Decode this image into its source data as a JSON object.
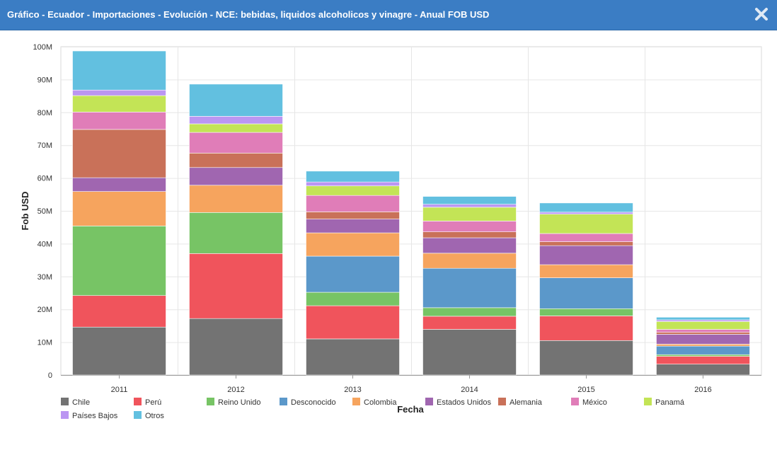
{
  "window": {
    "title": "Gráfico - Ecuador - Importaciones - Evolución - NCE: bebidas, liquidos alcoholicos y vinagre - Anual FOB USD",
    "close_icon": "close-x-icon"
  },
  "chart_data": {
    "type": "bar",
    "stacked": true,
    "xlabel": "Fecha",
    "ylabel": "Fob USD",
    "ylim": [
      0,
      100000000
    ],
    "yticks": [
      {
        "value": 0,
        "label": "0"
      },
      {
        "value": 10000000,
        "label": "10M"
      },
      {
        "value": 20000000,
        "label": "20M"
      },
      {
        "value": 30000000,
        "label": "30M"
      },
      {
        "value": 40000000,
        "label": "40M"
      },
      {
        "value": 50000000,
        "label": "50M"
      },
      {
        "value": 60000000,
        "label": "60M"
      },
      {
        "value": 70000000,
        "label": "70M"
      },
      {
        "value": 80000000,
        "label": "80M"
      },
      {
        "value": 90000000,
        "label": "90M"
      },
      {
        "value": 100000000,
        "label": "100M"
      }
    ],
    "grid": true,
    "legend_position": "bottom-left",
    "categories": [
      "2011",
      "2012",
      "2013",
      "2014",
      "2015",
      "2016"
    ],
    "series": [
      {
        "name": "Chile",
        "color": "#737373",
        "values": [
          14600000,
          17200000,
          11000000,
          13900000,
          10500000,
          3300000
        ]
      },
      {
        "name": "Perú",
        "color": "#f0545c",
        "values": [
          9600000,
          19800000,
          10100000,
          4000000,
          7500000,
          2400000
        ]
      },
      {
        "name": "Reino Unido",
        "color": "#77c465",
        "values": [
          21200000,
          12500000,
          4100000,
          2600000,
          2200000,
          500000
        ]
      },
      {
        "name": "Desconocido",
        "color": "#5b98ca",
        "values": [
          0,
          0,
          11000000,
          12000000,
          9400000,
          2600000
        ]
      },
      {
        "name": "Colombia",
        "color": "#f6a45e",
        "values": [
          10500000,
          8300000,
          7100000,
          4600000,
          4000000,
          600000
        ]
      },
      {
        "name": "Estados Unidos",
        "color": "#a066b0",
        "values": [
          4200000,
          5400000,
          4200000,
          4700000,
          5800000,
          3000000
        ]
      },
      {
        "name": "Alemania",
        "color": "#c97159",
        "values": [
          14700000,
          4400000,
          2200000,
          1800000,
          1200000,
          600000
        ]
      },
      {
        "name": "México",
        "color": "#e07db8",
        "values": [
          5300000,
          6300000,
          5000000,
          3300000,
          2500000,
          900000
        ]
      },
      {
        "name": "Panamá",
        "color": "#c3e456",
        "values": [
          5000000,
          2600000,
          2900000,
          4200000,
          5900000,
          2400000
        ]
      },
      {
        "name": "Países Bajos",
        "color": "#bb96f2",
        "values": [
          1700000,
          2300000,
          1200000,
          900000,
          600000,
          500000
        ]
      },
      {
        "name": "Otros",
        "color": "#62c0e0",
        "values": [
          11900000,
          9800000,
          3300000,
          2400000,
          2800000,
          800000
        ]
      }
    ]
  }
}
